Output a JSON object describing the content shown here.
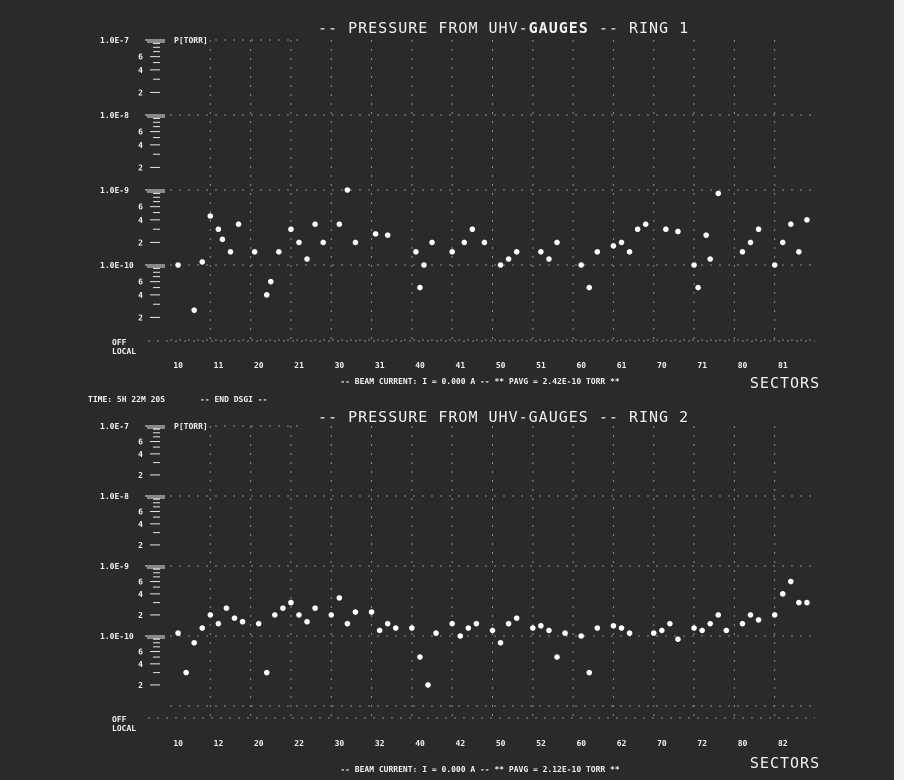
{
  "chart_data": [
    {
      "type": "scatter",
      "title_prefix": "--",
      "title_left": "PRESSURE FROM UHV-",
      "title_bold": "GAUGES",
      "title_right": "-- RING  1",
      "ylabel": "P[TORR]",
      "yscale": "log",
      "ylim": [
        1e-11,
        1e-07
      ],
      "yticks_major": [
        "1.0E-7",
        "1.0E-8",
        "1.0E-9",
        "1.0E-10"
      ],
      "yticks_minor": [
        "6",
        "4",
        "2"
      ],
      "off_label": "OFF",
      "local_label": "LOCAL",
      "xlabel": "SECTORS",
      "categories": [
        "10",
        "11",
        "20",
        "21",
        "30",
        "31",
        "40",
        "41",
        "50",
        "51",
        "60",
        "61",
        "70",
        "71",
        "80",
        "81"
      ],
      "footer": "-- BEAM CURRENT: I =  0.000 A --   ** PAVG =  2.42E-10 TORR **",
      "points": [
        {
          "x": 0.2,
          "y": 1e-10
        },
        {
          "x": 0.6,
          "y": 2.5e-11
        },
        {
          "x": 0.8,
          "y": 1.1e-10
        },
        {
          "x": 1.0,
          "y": 4.5e-10
        },
        {
          "x": 1.2,
          "y": 3e-10
        },
        {
          "x": 1.3,
          "y": 2.2e-10
        },
        {
          "x": 1.5,
          "y": 1.5e-10
        },
        {
          "x": 1.7,
          "y": 3.5e-10
        },
        {
          "x": 2.1,
          "y": 1.5e-10
        },
        {
          "x": 2.4,
          "y": 4e-11
        },
        {
          "x": 2.5,
          "y": 6e-11
        },
        {
          "x": 2.7,
          "y": 1.5e-10
        },
        {
          "x": 3.0,
          "y": 3e-10
        },
        {
          "x": 3.2,
          "y": 2e-10
        },
        {
          "x": 3.4,
          "y": 1.2e-10
        },
        {
          "x": 3.6,
          "y": 3.5e-10
        },
        {
          "x": 3.8,
          "y": 2e-10
        },
        {
          "x": 4.2,
          "y": 3.5e-10
        },
        {
          "x": 4.4,
          "y": 1e-09
        },
        {
          "x": 4.6,
          "y": 2e-10
        },
        {
          "x": 5.1,
          "y": 2.6e-10
        },
        {
          "x": 5.4,
          "y": 2.5e-10
        },
        {
          "x": 6.1,
          "y": 1.5e-10
        },
        {
          "x": 6.2,
          "y": 5e-11
        },
        {
          "x": 6.3,
          "y": 1e-10
        },
        {
          "x": 6.5,
          "y": 2e-10
        },
        {
          "x": 7.0,
          "y": 1.5e-10
        },
        {
          "x": 7.3,
          "y": 2e-10
        },
        {
          "x": 7.5,
          "y": 3e-10
        },
        {
          "x": 7.8,
          "y": 2e-10
        },
        {
          "x": 8.2,
          "y": 1e-10
        },
        {
          "x": 8.4,
          "y": 1.2e-10
        },
        {
          "x": 8.6,
          "y": 1.5e-10
        },
        {
          "x": 9.2,
          "y": 1.5e-10
        },
        {
          "x": 9.4,
          "y": 1.2e-10
        },
        {
          "x": 9.6,
          "y": 2e-10
        },
        {
          "x": 10.2,
          "y": 1e-10
        },
        {
          "x": 10.4,
          "y": 5e-11
        },
        {
          "x": 10.6,
          "y": 1.5e-10
        },
        {
          "x": 11.0,
          "y": 1.8e-10
        },
        {
          "x": 11.2,
          "y": 2e-10
        },
        {
          "x": 11.4,
          "y": 1.5e-10
        },
        {
          "x": 11.6,
          "y": 3e-10
        },
        {
          "x": 11.8,
          "y": 3.5e-10
        },
        {
          "x": 12.3,
          "y": 3e-10
        },
        {
          "x": 12.6,
          "y": 2.8e-10
        },
        {
          "x": 13.0,
          "y": 1e-10
        },
        {
          "x": 13.1,
          "y": 5e-11
        },
        {
          "x": 13.3,
          "y": 2.5e-10
        },
        {
          "x": 13.4,
          "y": 1.2e-10
        },
        {
          "x": 13.6,
          "y": 9e-10
        },
        {
          "x": 14.2,
          "y": 1.5e-10
        },
        {
          "x": 14.4,
          "y": 2e-10
        },
        {
          "x": 14.6,
          "y": 3e-10
        },
        {
          "x": 15.0,
          "y": 1e-10
        },
        {
          "x": 15.2,
          "y": 2e-10
        },
        {
          "x": 15.4,
          "y": 3.5e-10
        },
        {
          "x": 15.6,
          "y": 1.5e-10
        },
        {
          "x": 15.8,
          "y": 4e-10
        }
      ]
    },
    {
      "type": "scatter",
      "title_prefix": "--",
      "title_left": "PRESSURE FROM UHV-GAUGES",
      "title_bold": "",
      "title_right": "-- RING  2",
      "ylabel": "P[TORR]",
      "yscale": "log",
      "ylim": [
        1e-11,
        1e-07
      ],
      "yticks_major": [
        "1.0E-7",
        "1.0E-8",
        "1.0E-9",
        "1.0E-10"
      ],
      "yticks_minor": [
        "6",
        "4",
        "2"
      ],
      "off_label": "OFF",
      "local_label": "LOCAL",
      "xlabel": "SECTORS",
      "categories": [
        "10",
        "12",
        "20",
        "22",
        "30",
        "32",
        "40",
        "42",
        "50",
        "52",
        "60",
        "62",
        "70",
        "72",
        "80",
        "82"
      ],
      "header_left": "TIME: 5H 22M 20S",
      "header_mid": "-- END DSGI --",
      "footer": "-- BEAM CURRENT: I =  0.000 A --   ** PAVG =  2.12E-10 TORR **",
      "points": [
        {
          "x": 0.2,
          "y": 1.1e-10
        },
        {
          "x": 0.4,
          "y": 3e-11
        },
        {
          "x": 0.6,
          "y": 8e-11
        },
        {
          "x": 0.8,
          "y": 1.3e-10
        },
        {
          "x": 1.0,
          "y": 2e-10
        },
        {
          "x": 1.2,
          "y": 1.5e-10
        },
        {
          "x": 1.4,
          "y": 2.5e-10
        },
        {
          "x": 1.6,
          "y": 1.8e-10
        },
        {
          "x": 1.8,
          "y": 1.6e-10
        },
        {
          "x": 2.2,
          "y": 1.5e-10
        },
        {
          "x": 2.4,
          "y": 3e-11
        },
        {
          "x": 2.6,
          "y": 2e-10
        },
        {
          "x": 2.8,
          "y": 2.5e-10
        },
        {
          "x": 3.0,
          "y": 3e-10
        },
        {
          "x": 3.2,
          "y": 2e-10
        },
        {
          "x": 3.4,
          "y": 1.6e-10
        },
        {
          "x": 3.6,
          "y": 2.5e-10
        },
        {
          "x": 4.0,
          "y": 2e-10
        },
        {
          "x": 4.2,
          "y": 3.5e-10
        },
        {
          "x": 4.4,
          "y": 1.5e-10
        },
        {
          "x": 4.6,
          "y": 2.2e-10
        },
        {
          "x": 5.0,
          "y": 2.2e-10
        },
        {
          "x": 5.2,
          "y": 1.2e-10
        },
        {
          "x": 5.4,
          "y": 1.5e-10
        },
        {
          "x": 5.6,
          "y": 1.3e-10
        },
        {
          "x": 6.0,
          "y": 1.3e-10
        },
        {
          "x": 6.2,
          "y": 5e-11
        },
        {
          "x": 6.4,
          "y": 2e-11
        },
        {
          "x": 6.6,
          "y": 1.1e-10
        },
        {
          "x": 7.0,
          "y": 1.5e-10
        },
        {
          "x": 7.2,
          "y": 1e-10
        },
        {
          "x": 7.4,
          "y": 1.3e-10
        },
        {
          "x": 7.6,
          "y": 1.5e-10
        },
        {
          "x": 8.0,
          "y": 1.2e-10
        },
        {
          "x": 8.2,
          "y": 8e-11
        },
        {
          "x": 8.4,
          "y": 1.5e-10
        },
        {
          "x": 8.6,
          "y": 1.8e-10
        },
        {
          "x": 9.0,
          "y": 1.3e-10
        },
        {
          "x": 9.2,
          "y": 1.4e-10
        },
        {
          "x": 9.4,
          "y": 1.2e-10
        },
        {
          "x": 9.6,
          "y": 5e-11
        },
        {
          "x": 9.8,
          "y": 1.1e-10
        },
        {
          "x": 10.2,
          "y": 1e-10
        },
        {
          "x": 10.4,
          "y": 3e-11
        },
        {
          "x": 10.6,
          "y": 1.3e-10
        },
        {
          "x": 11.0,
          "y": 1.4e-10
        },
        {
          "x": 11.2,
          "y": 1.3e-10
        },
        {
          "x": 11.4,
          "y": 1.1e-10
        },
        {
          "x": 12.0,
          "y": 1.1e-10
        },
        {
          "x": 12.2,
          "y": 1.2e-10
        },
        {
          "x": 12.4,
          "y": 1.5e-10
        },
        {
          "x": 12.6,
          "y": 9e-11
        },
        {
          "x": 13.0,
          "y": 1.3e-10
        },
        {
          "x": 13.2,
          "y": 1.2e-10
        },
        {
          "x": 13.4,
          "y": 1.5e-10
        },
        {
          "x": 13.6,
          "y": 2e-10
        },
        {
          "x": 13.8,
          "y": 1.2e-10
        },
        {
          "x": 14.2,
          "y": 1.5e-10
        },
        {
          "x": 14.4,
          "y": 2e-10
        },
        {
          "x": 14.6,
          "y": 1.7e-10
        },
        {
          "x": 15.0,
          "y": 2e-10
        },
        {
          "x": 15.2,
          "y": 4e-10
        },
        {
          "x": 15.4,
          "y": 6e-10
        },
        {
          "x": 15.6,
          "y": 3e-10
        },
        {
          "x": 15.8,
          "y": 3e-10
        }
      ]
    }
  ]
}
